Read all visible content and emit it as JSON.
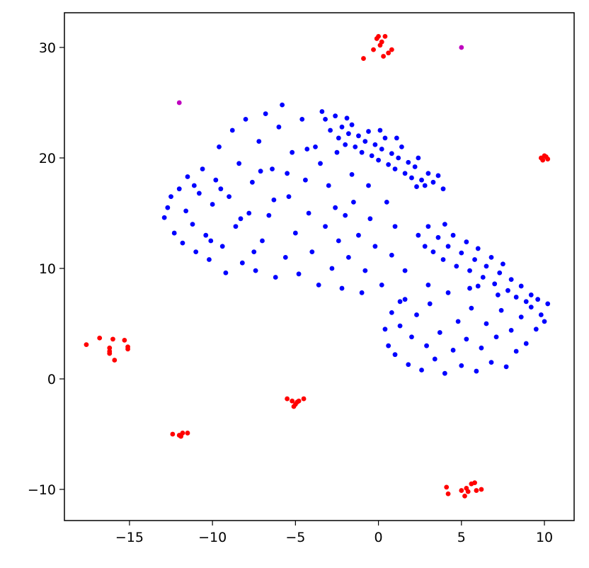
{
  "chart_data": {
    "type": "scatter",
    "xlim": [
      -18.92,
      11.79
    ],
    "ylim": [
      -12.82,
      33.14
    ],
    "xticks": [
      {
        "value": -15,
        "label": "−15"
      },
      {
        "value": -10,
        "label": "−10"
      },
      {
        "value": -5,
        "label": "−5"
      },
      0,
      5,
      10
    ],
    "yticks": [
      {
        "value": -10,
        "label": "−10"
      },
      0,
      10,
      20,
      30
    ],
    "series": [
      {
        "color": "#0000ff",
        "x": [
          -12.9,
          -12.7,
          -12.5,
          -12.3,
          -12,
          -11.8,
          -11.6,
          -11.5,
          -11.2,
          -11,
          -10.8,
          -10.6,
          -10.4,
          -10.2,
          -10,
          -9.8,
          -9.6,
          -9.4,
          -9.2,
          -9,
          -8.8,
          -8.6,
          -8.4,
          -8.2,
          -8,
          -7.8,
          -7.6,
          -7.4,
          -7.2,
          -7,
          -6.8,
          -6.6,
          -6.4,
          -6.2,
          -6,
          -5.8,
          -5.6,
          -5.4,
          -5.2,
          -5,
          -4.8,
          -4.6,
          -4.4,
          -4.2,
          -4,
          -3.8,
          -3.6,
          -3.4,
          -3.2,
          -3,
          -2.8,
          -2.6,
          -2.4,
          -2.2,
          -2,
          -1.8,
          -1.5,
          -1.2,
          -1,
          -0.8,
          -0.5,
          -0.2,
          0.2,
          0.5,
          0.8,
          1,
          1.3,
          1.6,
          -9.5,
          -8.3,
          -7.1,
          -6.3,
          -5.5,
          -4.3,
          -11.1,
          -10.1,
          -7.5,
          -3.5,
          -2.5,
          -1.6,
          -0.6,
          -3.2,
          -2.9,
          -2.6,
          -2.4,
          -2.2,
          -2,
          -1.8,
          -1.6,
          -1.4,
          -1.2,
          -1,
          -0.8,
          -0.6,
          -0.4,
          -0.2,
          0,
          0.2,
          0.4,
          0.6,
          0.8,
          1,
          1.2,
          1.4,
          1.6,
          1.8,
          2,
          2.2,
          2.4,
          2.6,
          2.8,
          3,
          3.3,
          3.6,
          3.9,
          -1.9,
          0.1,
          1.1,
          2.3,
          2.4,
          2.8,
          3,
          3.3,
          3.6,
          3.9,
          4.2,
          4.5,
          4.7,
          5,
          5.3,
          5.5,
          5.8,
          6,
          6.3,
          6.5,
          6.8,
          7,
          7.3,
          7.5,
          7.8,
          8,
          8.3,
          8.6,
          8.9,
          9.2,
          4,
          6,
          7.2,
          0.4,
          0.6,
          0.8,
          1,
          1.3,
          1.6,
          1.8,
          2,
          2.3,
          2.6,
          2.9,
          3.1,
          3.4,
          3.7,
          4,
          4.2,
          4.5,
          4.8,
          5,
          5.3,
          5.6,
          5.9,
          6.2,
          6.5,
          6.8,
          7.1,
          7.4,
          7.7,
          8,
          8.3,
          8.6,
          8.9,
          9.2,
          9.5,
          9.8,
          10.2,
          10,
          9.6,
          3,
          5.5
        ],
        "y": [
          14.6,
          15.5,
          16.5,
          13.2,
          17.2,
          12.3,
          15.2,
          18.3,
          14,
          11.5,
          16.8,
          19,
          13,
          10.8,
          15.8,
          18,
          21,
          12,
          9.6,
          16.5,
          22.5,
          13.8,
          19.5,
          10.5,
          23.5,
          15,
          17.8,
          9.8,
          21.5,
          12.5,
          24,
          14.8,
          19,
          9.2,
          22.8,
          24.8,
          11,
          16.5,
          20.5,
          13.2,
          9.5,
          23.5,
          18,
          15,
          11.5,
          21,
          8.5,
          24.2,
          13.8,
          17.5,
          10,
          15.5,
          12.5,
          8.2,
          14.8,
          11,
          16,
          13,
          7.8,
          9.8,
          14.5,
          12,
          8.5,
          16,
          11.2,
          13.8,
          7,
          9.8,
          17.2,
          14.5,
          18.8,
          16.2,
          18.6,
          20.8,
          17.5,
          12.5,
          11.5,
          19.5,
          20.5,
          18.5,
          17.5,
          23.5,
          22.5,
          23.8,
          21.8,
          22.8,
          21.2,
          22.2,
          23,
          21,
          22,
          20.5,
          21.5,
          22.4,
          20.2,
          21.2,
          19.8,
          20.8,
          21.8,
          19.4,
          20.4,
          19,
          20,
          21,
          18.6,
          19.6,
          18.2,
          19.2,
          20,
          18,
          17.5,
          18.6,
          17.8,
          18.4,
          17.2,
          23.6,
          22.5,
          21.8,
          17.4,
          13,
          12,
          13.8,
          11.5,
          12.8,
          10.8,
          12,
          13,
          10.2,
          11.4,
          12.4,
          9.8,
          10.8,
          11.8,
          9.2,
          10.2,
          11,
          8.6,
          9.6,
          10.4,
          8,
          9,
          7.4,
          8.4,
          7,
          7.6,
          14,
          8.4,
          7.6,
          4.5,
          3,
          6,
          2.2,
          4.8,
          7.2,
          1.3,
          3.8,
          5.8,
          0.8,
          3,
          6.8,
          1.8,
          4.2,
          0.5,
          7.8,
          2.6,
          5.2,
          1.2,
          3.6,
          6.4,
          0.7,
          2.8,
          5,
          1.5,
          3.8,
          6.2,
          1.1,
          4.4,
          2.5,
          5.6,
          3.2,
          6.5,
          4.5,
          5.8,
          6.8,
          5.2,
          7.2,
          8.5,
          8.2
        ]
      },
      {
        "color": "#ff0000",
        "x": [
          -0.9,
          -0.3,
          0,
          0.2,
          0.4,
          0.3,
          0.6,
          0.8,
          0.1,
          -0.1,
          9.8,
          10,
          10.2,
          9.9,
          10.1,
          -17.6,
          -16.8,
          -16,
          -15.3,
          -15.1,
          -15.1,
          -16.2,
          -16.2,
          -16.2,
          -15.9,
          -5.5,
          -5.2,
          -5,
          -4.8,
          -4.5,
          -5.1,
          -4.9,
          -12.4,
          -12,
          -11.8,
          -11.5,
          -11.9,
          4.1,
          4.2,
          5,
          5.2,
          5.3,
          5.6,
          5.8,
          5.9,
          6.2,
          5.4
        ],
        "y": [
          29,
          29.8,
          31,
          30.5,
          31,
          29.2,
          29.5,
          29.8,
          30.2,
          30.8,
          20,
          20.2,
          19.9,
          19.8,
          20.1,
          3.1,
          3.7,
          3.6,
          3.5,
          2.9,
          2.7,
          2.8,
          2.3,
          2.5,
          1.7,
          -1.8,
          -2,
          -2.3,
          -2,
          -1.8,
          -2.5,
          -2.1,
          -5,
          -5.1,
          -4.9,
          -4.9,
          -5.2,
          -9.8,
          -10.4,
          -10.1,
          -10.6,
          -9.9,
          -9.5,
          -9.4,
          -10.1,
          -10,
          -10.2
        ]
      },
      {
        "color": "#bf00bf",
        "x": [
          -12,
          5
        ],
        "y": [
          25,
          30
        ]
      }
    ]
  }
}
